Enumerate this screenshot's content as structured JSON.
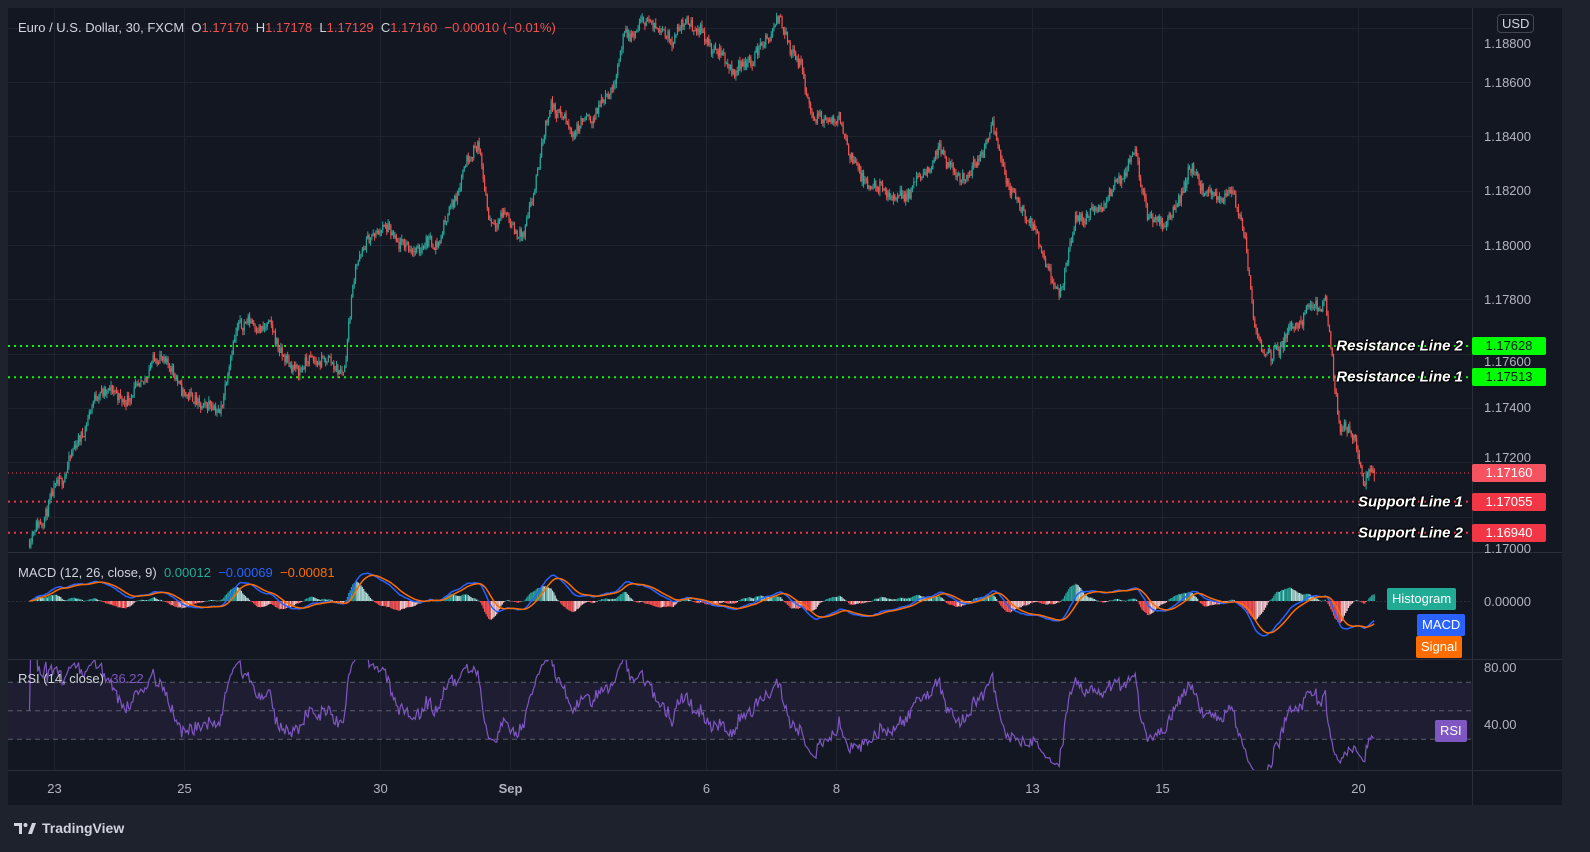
{
  "header": {
    "symbol": "Euro / U.S. Dollar, 30, FXCM",
    "o_label": "O",
    "o": "1.17170",
    "h_label": "H",
    "h": "1.17178",
    "l_label": "L",
    "l": "1.17129",
    "c_label": "C",
    "c": "1.17160",
    "change": "−0.00010 (−0.01%)"
  },
  "currency": "USD",
  "footer": {
    "brand": "TradingView",
    "logo_icon": "tradingview-logo-icon"
  },
  "chart_data": {
    "type": "candlestick",
    "timeframe": "30",
    "ylim": [
      1.1687,
      1.1887
    ],
    "grid": true,
    "colors": {
      "up": "#26a69a",
      "down": "#ef5350",
      "background": "#131722"
    },
    "price_ticks": [
      "1.18800",
      "1.18600",
      "1.18400",
      "1.18200",
      "1.18000",
      "1.17800",
      "1.17600",
      "1.17400",
      "1.17200",
      "1.17000"
    ],
    "time_ticks": [
      {
        "label": "23",
        "at": "Aug 23 00:00"
      },
      {
        "label": "25",
        "at": "Aug 25 00:00"
      },
      {
        "label": "30",
        "at": "Aug 30 00:00"
      },
      {
        "label": "Sep",
        "at": "Sep 1 00:00",
        "bold": true
      },
      {
        "label": "6",
        "at": "Sep 6 00:00"
      },
      {
        "label": "8",
        "at": "Sep 8 00:00"
      },
      {
        "label": "13",
        "at": "Sep 13 00:00"
      },
      {
        "label": "15",
        "at": "Sep 15 00:00"
      },
      {
        "label": "20",
        "at": "Sep 20 00:00"
      }
    ],
    "points": [
      {
        "time": "Aug 20 15:00",
        "close": 1.1691
      },
      {
        "time": "Aug 20 21:00",
        "close": 1.1702
      },
      {
        "time": "Aug 23 06:00",
        "close": 1.1721
      },
      {
        "time": "Aug 23 17:00",
        "close": 1.1747
      },
      {
        "time": "Aug 24 04:00",
        "close": 1.1743
      },
      {
        "time": "Aug 24 15:00",
        "close": 1.176
      },
      {
        "time": "Aug 25 02:00",
        "close": 1.1743
      },
      {
        "time": "Aug 25 13:00",
        "close": 1.1739
      },
      {
        "time": "Aug 25 20:00",
        "close": 1.1772
      },
      {
        "time": "Aug 26 08:00",
        "close": 1.1769
      },
      {
        "time": "Aug 26 15:00",
        "close": 1.1754
      },
      {
        "time": "Aug 27 02:00",
        "close": 1.1758
      },
      {
        "time": "Aug 27 11:00",
        "close": 1.1754
      },
      {
        "time": "Aug 27 15:00",
        "close": 1.1794
      },
      {
        "time": "Aug 30 00:00",
        "close": 1.1807
      },
      {
        "time": "Aug 30 11:00",
        "close": 1.1798
      },
      {
        "time": "Aug 30 22:00",
        "close": 1.1802
      },
      {
        "time": "Aug 31 07:00",
        "close": 1.1828
      },
      {
        "time": "Aug 31 12:00",
        "close": 1.1839
      },
      {
        "time": "Aug 31 16:00",
        "close": 1.1809
      },
      {
        "time": "Aug 31 22:00",
        "close": 1.1811
      },
      {
        "time": "Sep 1 05:00",
        "close": 1.1802
      },
      {
        "time": "Sep 1 15:00",
        "close": 1.1853
      },
      {
        "time": "Sep 1 22:00",
        "close": 1.1842
      },
      {
        "time": "Sep 2 05:00",
        "close": 1.1846
      },
      {
        "time": "Sep 2 13:00",
        "close": 1.1857
      },
      {
        "time": "Sep 2 18:00",
        "close": 1.1876
      },
      {
        "time": "Sep 3 03:00",
        "close": 1.1883
      },
      {
        "time": "Sep 3 11:00",
        "close": 1.1876
      },
      {
        "time": "Sep 3 18:00",
        "close": 1.1883
      },
      {
        "time": "Sep 6 03:00",
        "close": 1.1872
      },
      {
        "time": "Sep 6 11:00",
        "close": 1.1864
      },
      {
        "time": "Sep 6 20:00",
        "close": 1.1872
      },
      {
        "time": "Sep 7 03:00",
        "close": 1.1883
      },
      {
        "time": "Sep 7 11:00",
        "close": 1.1864
      },
      {
        "time": "Sep 7 16:00",
        "close": 1.1846
      },
      {
        "time": "Sep 8 01:00",
        "close": 1.1846
      },
      {
        "time": "Sep 8 09:00",
        "close": 1.1824
      },
      {
        "time": "Sep 8 16:00",
        "close": 1.182
      },
      {
        "time": "Sep 8 23:00",
        "close": 1.1817
      },
      {
        "time": "Sep 9 07:00",
        "close": 1.1824
      },
      {
        "time": "Sep 9 14:00",
        "close": 1.1835
      },
      {
        "time": "Sep 9 21:00",
        "close": 1.1824
      },
      {
        "time": "Sep 10 05:00",
        "close": 1.1831
      },
      {
        "time": "Sep 10 09:00",
        "close": 1.1846
      },
      {
        "time": "Sep 10 16:00",
        "close": 1.182
      },
      {
        "time": "Sep 10 23:00",
        "close": 1.1809
      },
      {
        "time": "Sep 13 05:00",
        "close": 1.1794
      },
      {
        "time": "Sep 13 10:00",
        "close": 1.178
      },
      {
        "time": "Sep 13 16:00",
        "close": 1.1809
      },
      {
        "time": "Sep 14 01:00",
        "close": 1.1813
      },
      {
        "time": "Sep 14 08:00",
        "close": 1.1824
      },
      {
        "time": "Sep 14 14:00",
        "close": 1.1835
      },
      {
        "time": "Sep 14 19:00",
        "close": 1.1809
      },
      {
        "time": "Sep 15 03:00",
        "close": 1.1809
      },
      {
        "time": "Sep 15 10:00",
        "close": 1.1828
      },
      {
        "time": "Sep 15 18:00",
        "close": 1.1817
      },
      {
        "time": "Sep 16 01:00",
        "close": 1.182
      },
      {
        "time": "Sep 16 06:00",
        "close": 1.1806
      },
      {
        "time": "Sep 16 10:00",
        "close": 1.1769
      },
      {
        "time": "Sep 16 16:00",
        "close": 1.1758
      },
      {
        "time": "Sep 16 23:00",
        "close": 1.1769
      },
      {
        "time": "Sep 17 06:00",
        "close": 1.1776
      },
      {
        "time": "Sep 17 12:00",
        "close": 1.178
      },
      {
        "time": "Sep 17 14:00",
        "close": 1.1761
      },
      {
        "time": "Sep 17 17:00",
        "close": 1.1735
      },
      {
        "time": "Sep 17 23:00",
        "close": 1.1728
      },
      {
        "time": "Sep 20 02:00",
        "close": 1.1713
      },
      {
        "time": "Sep 20 06:00",
        "close": 1.1716
      }
    ],
    "last_bar": {
      "open": 1.1717,
      "high": 1.17178,
      "low": 1.17129,
      "close": 1.1716
    },
    "last_price": {
      "value": 1.1716,
      "label": "1.17160",
      "color": "#f7525f"
    },
    "horizontal_lines": [
      {
        "label": "Resistance Line 2",
        "value": 1.17628,
        "value_label": "1.17628",
        "color": "#00ff00",
        "text_color": "#131722",
        "style": "dotted"
      },
      {
        "label": "Resistance Line 1",
        "value": 1.17513,
        "value_label": "1.17513",
        "color": "#00ff00",
        "text_color": "#131722",
        "style": "dotted"
      },
      {
        "label": "Support Line 1",
        "value": 1.17055,
        "value_label": "1.17055",
        "color": "#f23645",
        "text_color": "#ffffff",
        "style": "dotted"
      },
      {
        "label": "Support Line 2",
        "value": 1.1694,
        "value_label": "1.16940",
        "color": "#f23645",
        "text_color": "#ffffff",
        "style": "dotted"
      }
    ],
    "macd": {
      "title": "MACD (12, 26, close, 9)",
      "histogram_value": "0.00012",
      "macd_value": "−0.00069",
      "signal_value": "−0.00081",
      "axis_tick": "0.00000",
      "labels": {
        "histogram": "Histogram",
        "macd": "MACD",
        "signal": "Signal"
      },
      "colors": {
        "macd": "#2962ff",
        "signal": "#ff6d00",
        "hist_up_strong": "#26a69a",
        "hist_up_weak": "#b2dfdb",
        "hist_down_strong": "#ff5252",
        "hist_down_weak": "#ffcdd2",
        "histogram_label": "#22ab94"
      }
    },
    "rsi": {
      "title": "RSI (14, close)",
      "value": "36.22",
      "label": "RSI",
      "axis_ticks": [
        "80.00",
        "40.00"
      ],
      "bands": [
        70,
        50,
        30
      ],
      "color": "#7e57c2"
    }
  }
}
